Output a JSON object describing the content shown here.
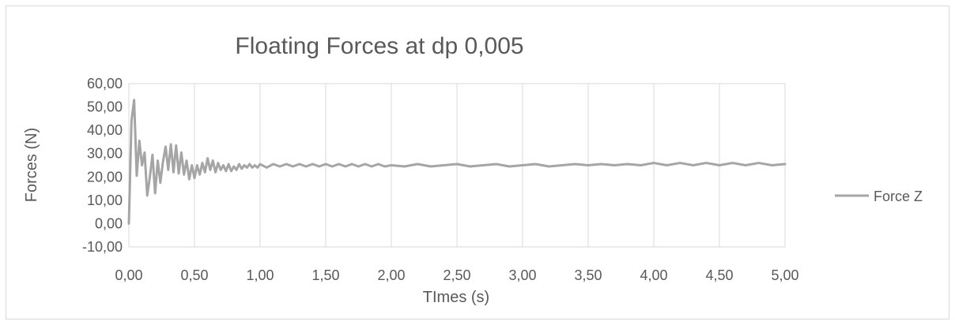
{
  "chart_data": {
    "type": "line",
    "title": "Floating Forces at dp 0,005",
    "xlabel": "TImes (s)",
    "ylabel": "Forces (N)",
    "xlim": [
      0,
      5
    ],
    "ylim": [
      -10,
      60
    ],
    "x_ticks": [
      "0,00",
      "0,50",
      "1,00",
      "1,50",
      "2,00",
      "2,50",
      "3,00",
      "3,50",
      "4,00",
      "4,50",
      "5,00"
    ],
    "y_ticks": [
      "-10,00",
      "0,00",
      "10,00",
      "20,00",
      "30,00",
      "40,00",
      "50,00",
      "60,00"
    ],
    "grid": "vertical",
    "legend_position": "right",
    "series": [
      {
        "name": "Force Z",
        "color": "#a5a5a5",
        "x": [
          0.0,
          0.02,
          0.04,
          0.06,
          0.08,
          0.1,
          0.12,
          0.14,
          0.16,
          0.18,
          0.2,
          0.22,
          0.24,
          0.26,
          0.28,
          0.3,
          0.32,
          0.34,
          0.36,
          0.38,
          0.4,
          0.42,
          0.44,
          0.46,
          0.48,
          0.5,
          0.52,
          0.54,
          0.56,
          0.58,
          0.6,
          0.62,
          0.64,
          0.66,
          0.68,
          0.7,
          0.72,
          0.74,
          0.76,
          0.78,
          0.8,
          0.82,
          0.84,
          0.86,
          0.88,
          0.9,
          0.92,
          0.94,
          0.96,
          0.98,
          1.0,
          1.05,
          1.1,
          1.15,
          1.2,
          1.25,
          1.3,
          1.35,
          1.4,
          1.45,
          1.5,
          1.55,
          1.6,
          1.65,
          1.7,
          1.75,
          1.8,
          1.85,
          1.9,
          1.95,
          2.0,
          2.1,
          2.2,
          2.3,
          2.4,
          2.5,
          2.6,
          2.7,
          2.8,
          2.9,
          3.0,
          3.1,
          3.2,
          3.3,
          3.4,
          3.5,
          3.6,
          3.7,
          3.8,
          3.9,
          4.0,
          4.1,
          4.2,
          4.3,
          4.4,
          4.5,
          4.6,
          4.7,
          4.8,
          4.9,
          5.0
        ],
        "values": [
          0.0,
          44.0,
          53.0,
          20.5,
          35.5,
          25.0,
          30.5,
          12.0,
          20.0,
          29.5,
          13.0,
          27.0,
          17.5,
          26.5,
          33.0,
          23.0,
          34.0,
          22.0,
          33.5,
          21.5,
          30.5,
          21.0,
          27.0,
          19.0,
          25.0,
          19.5,
          25.0,
          21.0,
          26.0,
          22.0,
          28.0,
          23.0,
          27.0,
          22.0,
          26.0,
          23.0,
          25.0,
          22.5,
          25.5,
          22.5,
          24.5,
          23.0,
          25.5,
          23.5,
          25.0,
          24.0,
          25.5,
          24.0,
          25.0,
          24.0,
          25.5,
          24.0,
          25.5,
          24.5,
          25.5,
          24.5,
          25.5,
          24.5,
          25.5,
          24.5,
          25.5,
          24.5,
          25.5,
          24.5,
          25.5,
          24.5,
          25.5,
          24.5,
          25.5,
          24.5,
          25.0,
          24.5,
          25.5,
          24.5,
          25.0,
          25.5,
          24.5,
          25.0,
          25.5,
          24.5,
          25.0,
          25.5,
          24.5,
          25.0,
          25.5,
          25.0,
          25.5,
          25.0,
          25.5,
          25.0,
          26.0,
          25.0,
          26.0,
          25.0,
          26.0,
          25.0,
          26.0,
          25.0,
          26.0,
          25.0,
          25.5
        ]
      }
    ]
  }
}
